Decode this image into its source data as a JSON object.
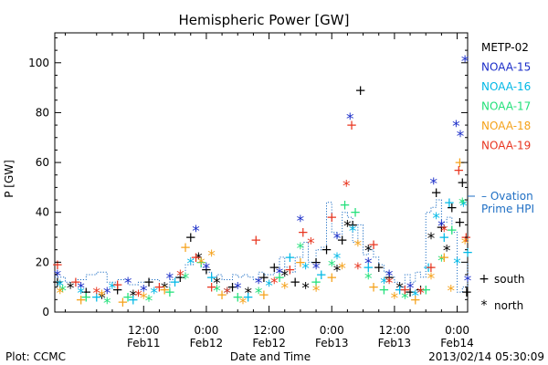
{
  "colors": {
    "METP-02": "#000000",
    "NOAA-15": "#1a2dc8",
    "NOAA-16": "#00b8e6",
    "NOAA-17": "#22e07a",
    "NOAA-18": "#f5a21b",
    "NOAA-19": "#e8351f",
    "ovation": "#1f6fc4"
  },
  "markers": {
    "south_symbol": "+",
    "north_symbol": "*"
  },
  "footer": {
    "plot_credit": "Plot: CCMC",
    "timestamp": "2013/02/14 05:30:09"
  },
  "chart_data": {
    "type": "scatter",
    "title": "Hemispheric Power [GW]",
    "xlabel": "Date and Time",
    "ylabel": "P [GW]",
    "xlim_hours": [
      -17,
      62
    ],
    "ylim": [
      0,
      112
    ],
    "x_ticks": [
      {
        "hours": 0,
        "line1": "12:00",
        "line2": "Feb11"
      },
      {
        "hours": 12,
        "line1": "0:00",
        "line2": "Feb12"
      },
      {
        "hours": 24,
        "line1": "12:00",
        "line2": "Feb12"
      },
      {
        "hours": 36,
        "line1": "0:00",
        "line2": "Feb13"
      },
      {
        "hours": 48,
        "line1": "12:00",
        "line2": "Feb13"
      },
      {
        "hours": 60,
        "line1": "0:00",
        "line2": "Feb14"
      }
    ],
    "y_ticks": [
      0,
      20,
      40,
      60,
      80,
      100
    ],
    "legend": [
      "METP-02",
      "NOAA-15",
      "NOAA-16",
      "NOAA-17",
      "NOAA-18",
      "NOAA-19"
    ],
    "ovation_label": [
      "– Ovation",
      "Prime HPI"
    ],
    "marker_legend": [
      {
        "symbol": "+",
        "label": "south"
      },
      {
        "symbol": "*",
        "label": "north"
      }
    ],
    "series": [
      {
        "name": "METP-02",
        "points": [
          [
            -16.5,
            12,
            "s"
          ],
          [
            -14,
            10,
            "n"
          ],
          [
            -11,
            8,
            "s"
          ],
          [
            -8,
            6,
            "n"
          ],
          [
            -5,
            9,
            "s"
          ],
          [
            -2,
            7,
            "n"
          ],
          [
            1,
            12,
            "s"
          ],
          [
            4,
            10,
            "n"
          ],
          [
            7,
            14,
            "s"
          ],
          [
            9,
            30,
            "s"
          ],
          [
            10.5,
            22,
            "n"
          ],
          [
            12,
            17,
            "s"
          ],
          [
            14,
            12,
            "n"
          ],
          [
            17,
            10,
            "s"
          ],
          [
            20,
            8,
            "n"
          ],
          [
            23,
            14,
            "s"
          ],
          [
            25,
            18,
            "s"
          ],
          [
            27,
            15,
            "n"
          ],
          [
            29,
            12,
            "s"
          ],
          [
            31,
            10,
            "n"
          ],
          [
            33,
            20,
            "s"
          ],
          [
            35,
            25,
            "s"
          ],
          [
            37,
            17,
            "n"
          ],
          [
            38,
            29,
            "s"
          ],
          [
            39,
            35,
            "n"
          ],
          [
            40,
            35,
            "s"
          ],
          [
            41.5,
            89,
            "s"
          ],
          [
            43,
            25,
            "n"
          ],
          [
            45,
            18,
            "s"
          ],
          [
            47,
            14,
            "s"
          ],
          [
            49,
            10,
            "n"
          ],
          [
            51,
            8,
            "s"
          ],
          [
            53,
            9,
            "s"
          ],
          [
            55,
            30,
            "n"
          ],
          [
            56,
            48,
            "s"
          ],
          [
            57,
            34,
            "s"
          ],
          [
            58,
            25,
            "n"
          ],
          [
            59,
            42,
            "s"
          ],
          [
            60.5,
            36,
            "s"
          ],
          [
            61,
            52,
            "s"
          ],
          [
            61.8,
            8,
            "s"
          ]
        ]
      },
      {
        "name": "NOAA-15",
        "points": [
          [
            -16.5,
            15,
            "n"
          ],
          [
            -12,
            10,
            "n"
          ],
          [
            -7,
            8,
            "n"
          ],
          [
            -3,
            12,
            "n"
          ],
          [
            0,
            9,
            "n"
          ],
          [
            5,
            14,
            "n"
          ],
          [
            10,
            33,
            "n"
          ],
          [
            12,
            18,
            "n"
          ],
          [
            18,
            10,
            "n"
          ],
          [
            22,
            12,
            "n"
          ],
          [
            26,
            16,
            "n"
          ],
          [
            30,
            37,
            "n"
          ],
          [
            33,
            18,
            "n"
          ],
          [
            37,
            30,
            "n"
          ],
          [
            39.5,
            78,
            "n"
          ],
          [
            43,
            20,
            "n"
          ],
          [
            47,
            15,
            "n"
          ],
          [
            51,
            10,
            "n"
          ],
          [
            55.5,
            52,
            "n"
          ],
          [
            57,
            35,
            "n"
          ],
          [
            59.8,
            75,
            "n"
          ],
          [
            60.6,
            71,
            "n"
          ],
          [
            61.5,
            101,
            "n"
          ],
          [
            62,
            13,
            "n"
          ]
        ]
      },
      {
        "name": "NOAA-16",
        "points": [
          [
            -16,
            11,
            "n"
          ],
          [
            -12,
            8,
            "n"
          ],
          [
            -9,
            6,
            "s"
          ],
          [
            -6,
            10,
            "n"
          ],
          [
            -2,
            5,
            "s"
          ],
          [
            2,
            8,
            "n"
          ],
          [
            6,
            12,
            "s"
          ],
          [
            9,
            20,
            "n"
          ],
          [
            13,
            14,
            "s"
          ],
          [
            16,
            8,
            "n"
          ],
          [
            20,
            6,
            "s"
          ],
          [
            24,
            11,
            "n"
          ],
          [
            28,
            22,
            "s"
          ],
          [
            31,
            18,
            "n"
          ],
          [
            34,
            15,
            "s"
          ],
          [
            37,
            22,
            "n"
          ],
          [
            40,
            33,
            "n"
          ],
          [
            43,
            18,
            "s"
          ],
          [
            46,
            12,
            "n"
          ],
          [
            49,
            9,
            "s"
          ],
          [
            52,
            7,
            "n"
          ],
          [
            54.5,
            18,
            "s"
          ],
          [
            56,
            38,
            "n"
          ],
          [
            57.5,
            30,
            "s"
          ],
          [
            58.5,
            44,
            "s"
          ],
          [
            60,
            20,
            "n"
          ],
          [
            61.2,
            43,
            "n"
          ],
          [
            62,
            24,
            "s"
          ]
        ]
      },
      {
        "name": "NOAA-17",
        "points": [
          [
            -15.5,
            9,
            "n"
          ],
          [
            -11,
            6,
            "s"
          ],
          [
            -7,
            4,
            "n"
          ],
          [
            -3,
            6,
            "s"
          ],
          [
            1,
            5,
            "n"
          ],
          [
            5,
            8,
            "s"
          ],
          [
            8,
            14,
            "n"
          ],
          [
            11,
            20,
            "s"
          ],
          [
            14,
            9,
            "n"
          ],
          [
            18,
            6,
            "s"
          ],
          [
            22,
            8,
            "n"
          ],
          [
            26,
            14,
            "s"
          ],
          [
            30,
            26,
            "n"
          ],
          [
            33,
            12,
            "s"
          ],
          [
            36,
            19,
            "n"
          ],
          [
            38.5,
            43,
            "s"
          ],
          [
            40.5,
            40,
            "s"
          ],
          [
            43,
            14,
            "n"
          ],
          [
            46,
            9,
            "s"
          ],
          [
            50,
            6,
            "n"
          ],
          [
            54,
            9,
            "s"
          ],
          [
            57,
            21,
            "n"
          ],
          [
            59,
            33,
            "s"
          ],
          [
            61,
            44,
            "n"
          ]
        ]
      },
      {
        "name": "NOAA-18",
        "points": [
          [
            -16,
            8,
            "n"
          ],
          [
            -12,
            5,
            "s"
          ],
          [
            -8,
            7,
            "n"
          ],
          [
            -4,
            4,
            "s"
          ],
          [
            0,
            6,
            "n"
          ],
          [
            4,
            9,
            "s"
          ],
          [
            8,
            26,
            "s"
          ],
          [
            11,
            20,
            "n"
          ],
          [
            13,
            23,
            "n"
          ],
          [
            15,
            7,
            "s"
          ],
          [
            19,
            4,
            "n"
          ],
          [
            23,
            7,
            "s"
          ],
          [
            27,
            10,
            "n"
          ],
          [
            30,
            20,
            "s"
          ],
          [
            33,
            9,
            "n"
          ],
          [
            36,
            14,
            "s"
          ],
          [
            38,
            18,
            "n"
          ],
          [
            41,
            27,
            "n"
          ],
          [
            44,
            10,
            "s"
          ],
          [
            48,
            6,
            "n"
          ],
          [
            52,
            5,
            "s"
          ],
          [
            55,
            14,
            "n"
          ],
          [
            57.5,
            22,
            "s"
          ],
          [
            58.8,
            9,
            "n"
          ],
          [
            60.5,
            60,
            "s"
          ],
          [
            61.5,
            28,
            "n"
          ]
        ]
      },
      {
        "name": "NOAA-19",
        "points": [
          [
            -16.5,
            19,
            "s"
          ],
          [
            -13,
            12,
            "s"
          ],
          [
            -9,
            8,
            "n"
          ],
          [
            -5,
            11,
            "s"
          ],
          [
            -1,
            7,
            "n"
          ],
          [
            3,
            10,
            "s"
          ],
          [
            7,
            15,
            "n"
          ],
          [
            10,
            22,
            "s"
          ],
          [
            13,
            10,
            "s"
          ],
          [
            16,
            8,
            "n"
          ],
          [
            21.5,
            29,
            "s"
          ],
          [
            25,
            12,
            "n"
          ],
          [
            28,
            17,
            "s"
          ],
          [
            30.5,
            32,
            "s"
          ],
          [
            32,
            28,
            "n"
          ],
          [
            36,
            38,
            "s"
          ],
          [
            38.8,
            51,
            "n"
          ],
          [
            39.8,
            75,
            "s"
          ],
          [
            41,
            18,
            "n"
          ],
          [
            44,
            27,
            "s"
          ],
          [
            47,
            12,
            "n"
          ],
          [
            50,
            9,
            "s"
          ],
          [
            53,
            8,
            "n"
          ],
          [
            55,
            18,
            "s"
          ],
          [
            57.5,
            33,
            "n"
          ],
          [
            60.3,
            57,
            "s"
          ],
          [
            61.7,
            30,
            "s"
          ]
        ]
      },
      {
        "name": "Ovation Prime HPI",
        "type": "step",
        "points": [
          [
            -17,
            14
          ],
          [
            -15,
            12
          ],
          [
            -13,
            13
          ],
          [
            -11,
            15
          ],
          [
            -9,
            16
          ],
          [
            -7,
            12
          ],
          [
            -5,
            13
          ],
          [
            -3,
            11
          ],
          [
            -1,
            12
          ],
          [
            1,
            13
          ],
          [
            3,
            10
          ],
          [
            5,
            13
          ],
          [
            6,
            14
          ],
          [
            8,
            19
          ],
          [
            9.5,
            22
          ],
          [
            11,
            18
          ],
          [
            12,
            16
          ],
          [
            13,
            14
          ],
          [
            14,
            15
          ],
          [
            15,
            13
          ],
          [
            17,
            15
          ],
          [
            18,
            14
          ],
          [
            19,
            15
          ],
          [
            20,
            14
          ],
          [
            21,
            13
          ],
          [
            22,
            16
          ],
          [
            23,
            15
          ],
          [
            25,
            18
          ],
          [
            26,
            22
          ],
          [
            27,
            18
          ],
          [
            28,
            16
          ],
          [
            29,
            22
          ],
          [
            30.5,
            28
          ],
          [
            31.5,
            20
          ],
          [
            33,
            25
          ],
          [
            34,
            26
          ],
          [
            35,
            44
          ],
          [
            36,
            32
          ],
          [
            37,
            30
          ],
          [
            38,
            40
          ],
          [
            39,
            38
          ],
          [
            40,
            28
          ],
          [
            41,
            35
          ],
          [
            42,
            23
          ],
          [
            43,
            25
          ],
          [
            44,
            22
          ],
          [
            45,
            19
          ],
          [
            46,
            16
          ],
          [
            47,
            14
          ],
          [
            48,
            12
          ],
          [
            49,
            10
          ],
          [
            50,
            15
          ],
          [
            51,
            12
          ],
          [
            52,
            16
          ],
          [
            53,
            14
          ],
          [
            54,
            40
          ],
          [
            55,
            42
          ],
          [
            56,
            45
          ],
          [
            57,
            36
          ],
          [
            58,
            38
          ],
          [
            59,
            32
          ],
          [
            60,
            8
          ],
          [
            61,
            10
          ],
          [
            62,
            20
          ]
        ]
      }
    ]
  }
}
